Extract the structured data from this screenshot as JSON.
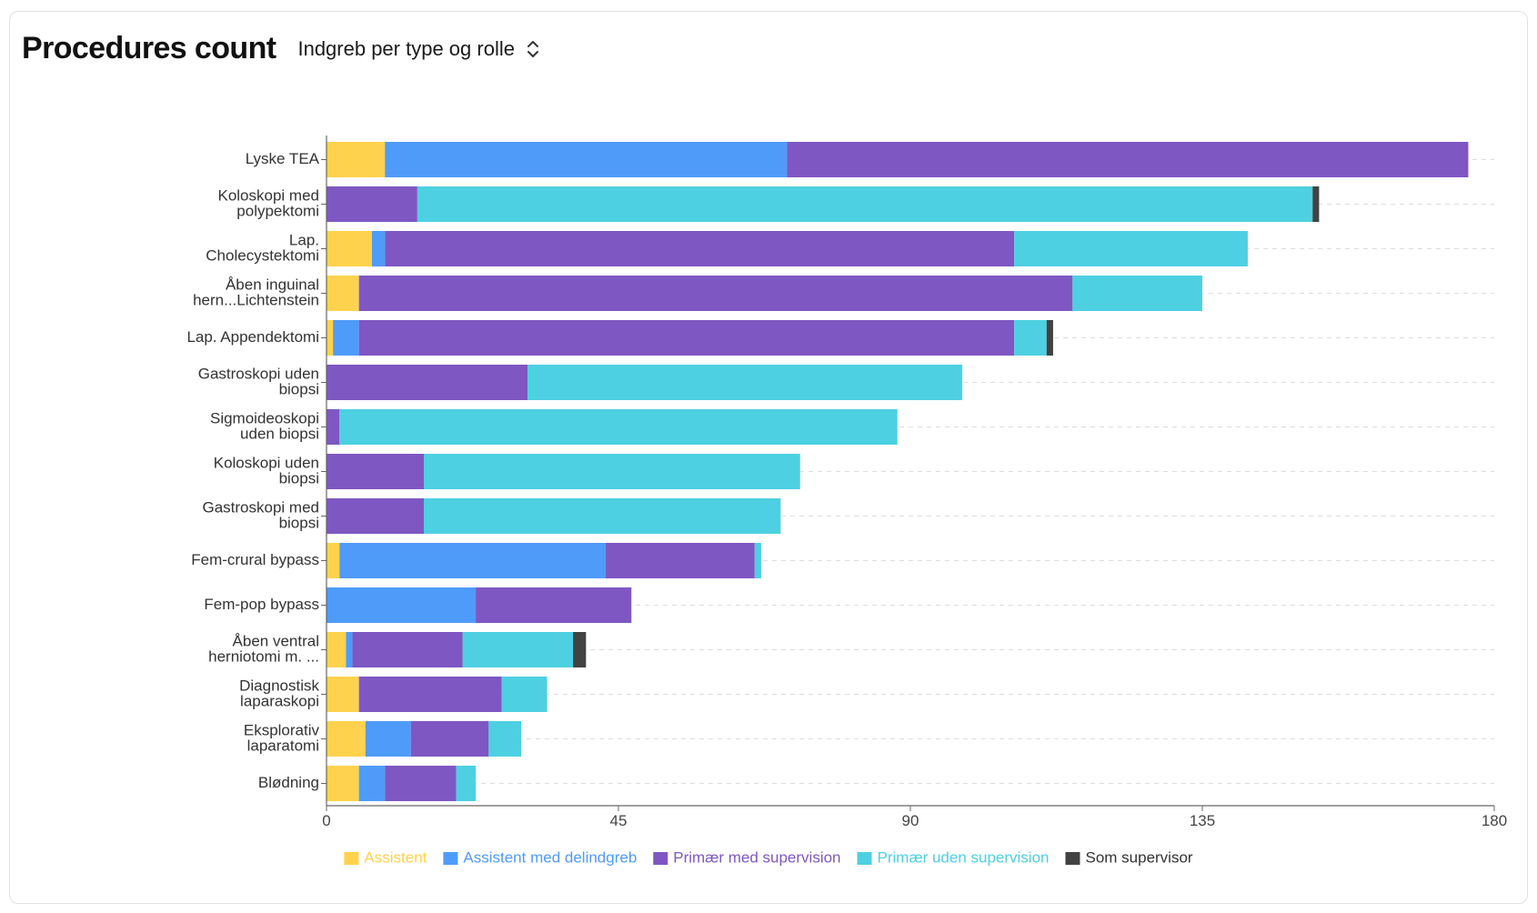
{
  "header": {
    "title": "Procedures count",
    "selector_label": "Indgreb per type og rolle"
  },
  "chart_data": {
    "type": "bar",
    "orientation": "horizontal",
    "stacked": true,
    "title": "",
    "xlabel": "",
    "ylabel": "",
    "xlim": [
      0,
      180
    ],
    "xticks": [
      0,
      45,
      90,
      135,
      180
    ],
    "grid": true,
    "legend_position": "bottom",
    "categories": [
      [
        "Lyske TEA"
      ],
      [
        "Koloskopi med",
        "polypektomi"
      ],
      [
        "Lap.",
        "Cholecystektomi"
      ],
      [
        "Åben inguinal",
        "hern...Lichtenstein"
      ],
      [
        "Lap. Appendektomi"
      ],
      [
        "Gastroskopi uden",
        "biopsi"
      ],
      [
        "Sigmoideoskopi",
        "uden biopsi"
      ],
      [
        "Koloskopi uden",
        "biopsi"
      ],
      [
        "Gastroskopi med",
        "biopsi"
      ],
      [
        "Fem-crural bypass"
      ],
      [
        "Fem-pop bypass"
      ],
      [
        "Åben ventral",
        "herniotomi m. ..."
      ],
      [
        "Diagnostisk",
        "laparaskopi"
      ],
      [
        "Eksplorativ",
        "laparatomi"
      ],
      [
        "Blødning"
      ]
    ],
    "series": [
      {
        "name": "Assistent",
        "color": "#FFD24D",
        "values": [
          9,
          0,
          7,
          5,
          1,
          0,
          0,
          0,
          0,
          2,
          0,
          3,
          5,
          6,
          5
        ]
      },
      {
        "name": "Assistent med delindgreb",
        "color": "#4F9BFA",
        "values": [
          62,
          0,
          2,
          0,
          4,
          0,
          0,
          0,
          0,
          41,
          23,
          1,
          0,
          7,
          4
        ]
      },
      {
        "name": "Primær med supervision",
        "color": "#7E57C2",
        "values": [
          105,
          14,
          97,
          110,
          101,
          31,
          2,
          15,
          15,
          23,
          24,
          17,
          22,
          12,
          11
        ]
      },
      {
        "name": "Primær uden supervision",
        "color": "#4DD0E1",
        "values": [
          0,
          138,
          36,
          20,
          5,
          67,
          86,
          58,
          55,
          1,
          0,
          17,
          7,
          5,
          3
        ]
      },
      {
        "name": "Som supervisor",
        "color": "#424242",
        "values": [
          0,
          1,
          0,
          0,
          1,
          0,
          0,
          0,
          0,
          0,
          0,
          2,
          0,
          0,
          0
        ]
      }
    ]
  }
}
